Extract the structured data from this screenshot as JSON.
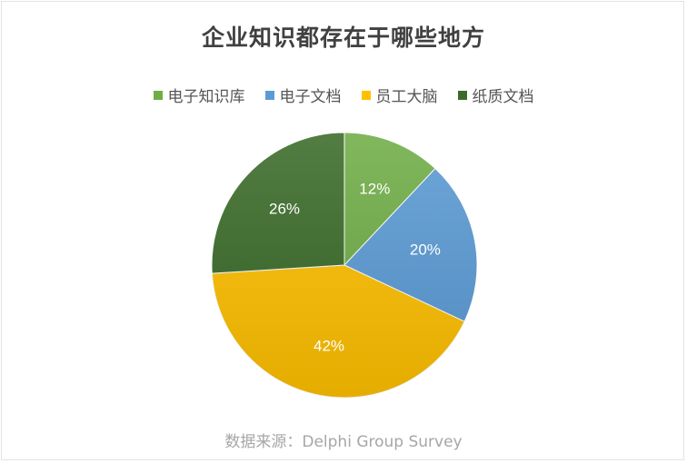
{
  "chart_data": {
    "type": "pie",
    "title": "企业知识都存在于哪些地方",
    "categories": [
      "电子知识库",
      "电子文档",
      "员工大脑",
      "纸质文档"
    ],
    "values": [
      12,
      20,
      42,
      26
    ],
    "labels": [
      "12%",
      "20%",
      "42%",
      "26%"
    ],
    "colors": [
      "#70ad47",
      "#5b9bd5",
      "#ffc000",
      "#3b6b29"
    ],
    "legend_position": "top"
  },
  "source": "数据来源：Delphi Group Survey"
}
